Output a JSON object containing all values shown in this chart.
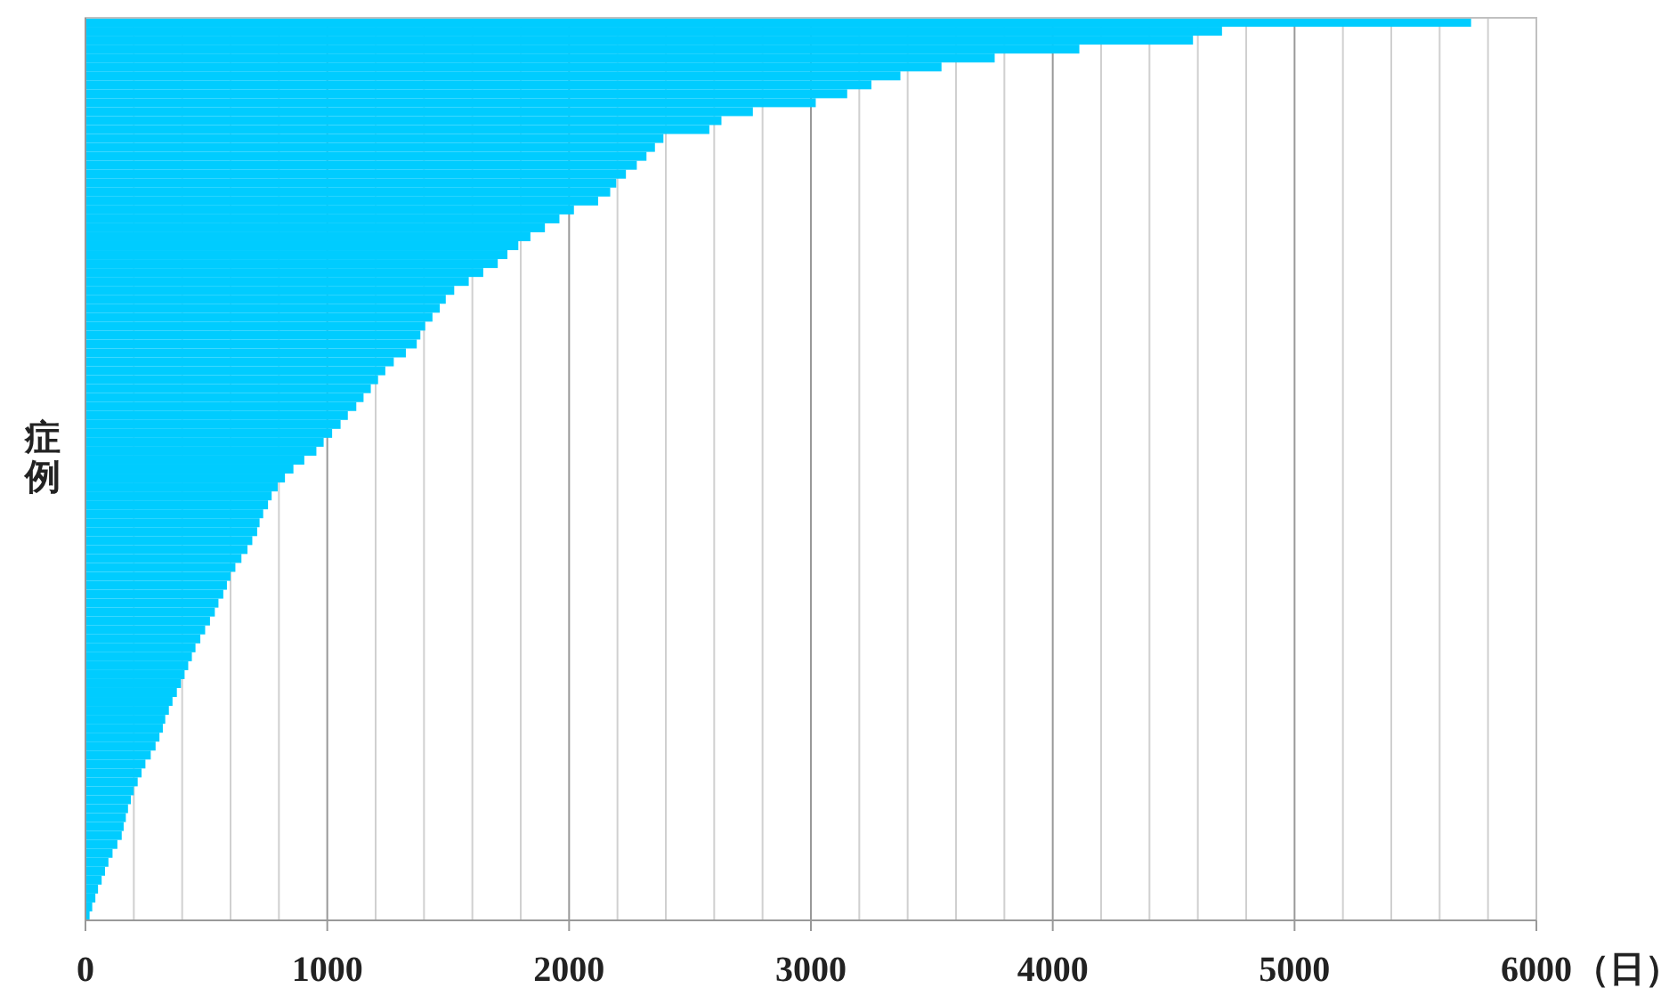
{
  "chart_data": {
    "type": "bar",
    "orientation": "horizontal",
    "color": "#00ccff",
    "ylabel": "症例",
    "xlabel": "（日）",
    "categories": [
      null,
      null,
      null,
      null,
      null,
      null,
      null,
      null,
      null,
      null,
      null,
      null,
      null,
      null,
      null,
      null,
      null,
      null,
      null,
      null,
      null,
      null,
      null,
      null,
      null,
      null,
      null,
      null,
      null,
      null,
      null,
      null,
      null,
      null,
      null,
      null,
      null,
      null,
      null,
      null,
      null,
      null,
      null,
      null,
      null,
      null,
      null,
      null,
      null,
      null,
      null,
      null,
      null,
      null,
      null,
      null,
      null,
      null,
      null,
      null,
      null,
      null,
      null,
      null,
      null,
      null,
      null,
      null,
      null,
      null,
      null,
      null,
      null,
      null,
      null,
      null,
      null,
      null,
      null,
      null,
      null,
      null,
      null,
      null,
      null,
      null,
      null,
      null,
      null,
      null,
      null,
      null,
      null,
      null,
      null,
      null,
      null,
      null,
      null,
      null,
      null
    ],
    "values": [
      5730,
      4700,
      4580,
      4110,
      3760,
      3540,
      3370,
      3250,
      3150,
      3020,
      2760,
      2630,
      2580,
      2390,
      2355,
      2320,
      2280,
      2235,
      2195,
      2170,
      2120,
      2020,
      1960,
      1900,
      1840,
      1790,
      1745,
      1705,
      1645,
      1585,
      1525,
      1490,
      1465,
      1435,
      1405,
      1385,
      1370,
      1325,
      1275,
      1240,
      1210,
      1180,
      1150,
      1120,
      1085,
      1055,
      1020,
      985,
      955,
      905,
      860,
      825,
      795,
      770,
      755,
      735,
      720,
      710,
      690,
      670,
      645,
      620,
      600,
      585,
      570,
      550,
      535,
      515,
      495,
      475,
      455,
      440,
      425,
      410,
      395,
      378,
      360,
      345,
      330,
      320,
      306,
      290,
      270,
      248,
      232,
      216,
      200,
      188,
      176,
      167,
      158,
      150,
      132,
      112,
      95,
      81,
      67,
      52,
      41,
      28,
      17
    ],
    "xlim": [
      0,
      6000
    ],
    "xticks": [
      0,
      {
        "value": 200,
        "label": null
      },
      {
        "value": 400,
        "label": null
      },
      {
        "value": 600,
        "label": null
      },
      {
        "value": 800,
        "label": null
      },
      1000,
      {
        "value": 1200,
        "label": null
      },
      {
        "value": 1400,
        "label": null
      },
      {
        "value": 1600,
        "label": null
      },
      {
        "value": 1800,
        "label": null
      },
      2000,
      {
        "value": 2200,
        "label": null
      },
      {
        "value": 2400,
        "label": null
      },
      {
        "value": 2600,
        "label": null
      },
      {
        "value": 2800,
        "label": null
      },
      3000,
      {
        "value": 3200,
        "label": null
      },
      {
        "value": 3400,
        "label": null
      },
      {
        "value": 3600,
        "label": null
      },
      {
        "value": 3800,
        "label": null
      },
      4000,
      {
        "value": 4200,
        "label": null
      },
      {
        "value": 4400,
        "label": null
      },
      {
        "value": 4600,
        "label": null
      },
      {
        "value": 4800,
        "label": null
      },
      5000,
      {
        "value": 5200,
        "label": null
      },
      {
        "value": 5400,
        "label": null
      },
      {
        "value": 5600,
        "label": null
      },
      {
        "value": 5800,
        "label": null
      },
      6000
    ],
    "grid": "x"
  }
}
